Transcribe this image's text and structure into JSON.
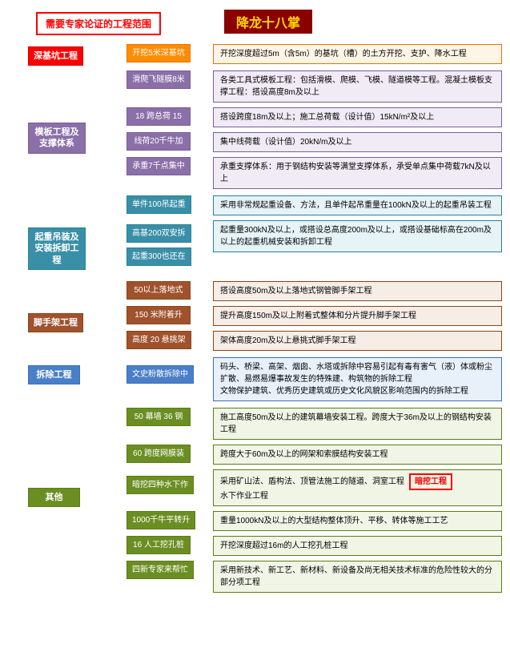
{
  "root": "需要专家论证的工程范围",
  "title": "降龙十八掌",
  "colors": {
    "red": {
      "bg": "#ff0000",
      "bd": "#cc0000",
      "lt": "#fff0f0"
    },
    "orange": {
      "bg": "#ff8c00",
      "bd": "#e67300",
      "lt": "#fff5e6"
    },
    "purple": {
      "bg": "#8a6fa8",
      "bd": "#7a5f98",
      "lt": "#f0ebf5"
    },
    "teal": {
      "bg": "#3a8fa8",
      "bd": "#2a7f98",
      "lt": "#e6f3f7"
    },
    "brown": {
      "bg": "#a0522d",
      "bd": "#8b4513",
      "lt": "#f5ede6"
    },
    "blue": {
      "bg": "#4a7fc8",
      "bd": "#3a6fb8",
      "lt": "#e8f0fa"
    },
    "green": {
      "bg": "#6b8e23",
      "bd": "#5a7d12",
      "lt": "#f0f5e6"
    }
  },
  "sections": [
    {
      "cat": "深基坑工程",
      "color": "red",
      "catTop": 3,
      "items": [
        {
          "mid": "开挖5米深基坑",
          "midColor": "orange",
          "midTop": 0,
          "desc": "开挖深度超过5m（含5m）的基坑（槽）的土方开挖、支护、降水工程"
        }
      ]
    },
    {
      "cat": "模板工程及支撑体系",
      "color": "purple",
      "catTop": 65,
      "items": [
        {
          "mid": "滑爬飞隧膜8米",
          "midColor": "purple",
          "midTop": 0,
          "desc": "各类工具式模板工程：包括滑模、爬模、飞模、隧道模等工程。混凝土模板支撑工程：搭设高度8m及以上"
        },
        {
          "mid": "18 跨总荷 15",
          "midColor": "purple",
          "midTop": 0,
          "desc": "搭设跨度18m及以上；施工总荷载（设计值）15kN/m²及以上"
        },
        {
          "mid": "线荷20千牛加",
          "midColor": "purple",
          "midTop": 0,
          "desc": "集中线荷载（设计值）20kN/m及以上"
        },
        {
          "mid": "承重7千点集中",
          "midColor": "purple",
          "midTop": 0,
          "desc": "承重支撑体系：用于钢结构安装等满堂支撑体系，承受单点集中荷载7kN及以上"
        }
      ]
    },
    {
      "cat": "起重吊装及安装拆卸工程",
      "color": "teal",
      "catTop": 40,
      "items": [
        {
          "mid": "单件100吊起重",
          "midColor": "teal",
          "midTop": 0,
          "desc": "采用非常规起重设备、方法，且单件起吊重量在100kN及以上的起重吊装工程"
        },
        {
          "mid": "高基200双安拆",
          "midColor": "teal",
          "midTop": 5,
          "desc": "起重量300kN及以上，或搭设总高度200m及以上，或搭设基础标高在200m及以上的起重机械安装和拆卸工程",
          "tall": true
        },
        {
          "mid": "起重300也还在",
          "midColor": "teal",
          "midTop": -12,
          "noDesc": true
        }
      ]
    },
    {
      "cat": "脚手架工程",
      "color": "brown",
      "catTop": 40,
      "items": [
        {
          "mid": "50以上落地式",
          "midColor": "brown",
          "midTop": 0,
          "desc": "搭设高度50m及以上落地式钢管脚手架工程"
        },
        {
          "mid": "150 米附着升",
          "midColor": "brown",
          "midTop": 0,
          "desc": "提升高度150m及以上附着式整体和分片提升脚手架工程"
        },
        {
          "mid": "高度 20 悬挑架",
          "midColor": "brown",
          "midTop": 0,
          "desc": "架体高度20m及以上悬挑式脚手架工程"
        }
      ]
    },
    {
      "cat": "拆除工程",
      "color": "blue",
      "catTop": 10,
      "items": [
        {
          "mid": "文史粉散拆除中",
          "midColor": "blue",
          "midTop": 10,
          "desc": "码头、桥梁、高架、烟囱、水塔或拆除中容易引起有毒有害气（液）体或粉尘扩散、易燃易爆事故发生的特殊建、构筑物的拆除工程&br&文物保护建筑、优秀历史建筑或历史文化风貌区影响范围内的拆除工程",
          "tall": true
        }
      ]
    },
    {
      "cat": "其他",
      "color": "green",
      "catTop": 100,
      "items": [
        {
          "mid": "50 幕墙 36 钢",
          "midColor": "green",
          "midTop": 0,
          "desc": "施工高度50m及以上的建筑幕墙安装工程。跨度大于36m及以上的钢结构安装工程"
        },
        {
          "mid": "60 跨度网膜装",
          "midColor": "green",
          "midTop": 0,
          "desc": "跨度大于60m及以上的网架和索膜结构安装工程"
        },
        {
          "mid": "暗挖四种水下作",
          "midColor": "green",
          "midTop": 8,
          "desc": "采用矿山法、盾构法、顶管法施工的隧道、洞室工程&badge&水下作业工程",
          "tall": true,
          "badge": "暗挖工程"
        },
        {
          "mid": "1000千牛平转升",
          "midColor": "green",
          "midTop": 0,
          "desc": "重量1000kN及以上的大型结构整体顶升、平移、转体等施工工艺"
        },
        {
          "mid": "16 人工挖孔桩",
          "midColor": "green",
          "midTop": 0,
          "desc": "开挖深度超过16m的人工挖孔桩工程"
        },
        {
          "mid": "四新专家来帮忙",
          "midColor": "green",
          "midTop": 0,
          "desc": "采用新技术、新工艺、新材料、新设备及尚无相关技术标准的危险性较大的分部分项工程"
        }
      ]
    }
  ]
}
